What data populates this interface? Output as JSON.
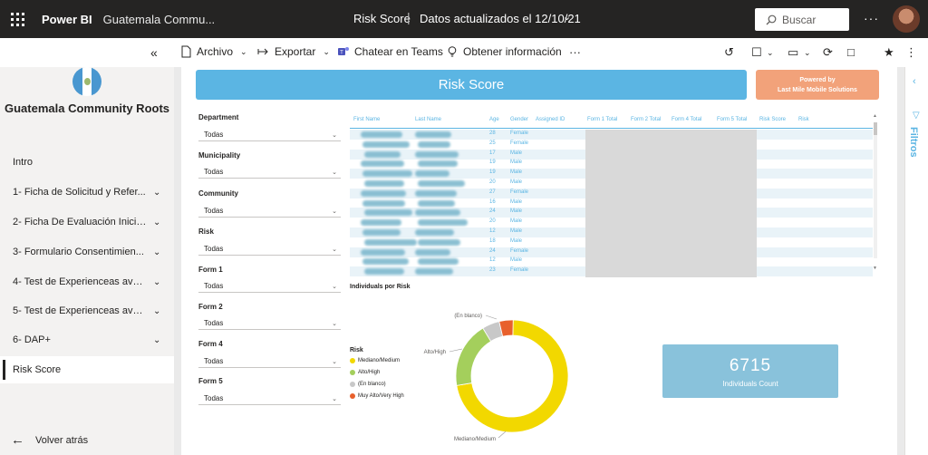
{
  "topbar": {
    "brand": "Power BI",
    "workspace": "Guatemala Commu...",
    "report_title": "Risk Score",
    "separator": "|",
    "updated": "Datos actualizados el 12/10/21",
    "search_placeholder": "Buscar",
    "more": "···"
  },
  "toolbar": {
    "archivo": "Archivo",
    "exportar": "Exportar",
    "teams": "Chatear en Teams",
    "info": "Obtener información",
    "more": "···"
  },
  "nav": {
    "org_name": "Guatemala Community Roots",
    "items": [
      {
        "label": "Intro",
        "chevron": false
      },
      {
        "label": "1- Ficha de Solicitud y Refer...",
        "chevron": true
      },
      {
        "label": "2- Ficha De Evaluación Inicia...",
        "chevron": true
      },
      {
        "label": "3- Formulario Consentimien...",
        "chevron": true
      },
      {
        "label": "4- Test de Experienceas aver...",
        "chevron": true
      },
      {
        "label": "5- Test de Experienceas aver...",
        "chevron": true
      },
      {
        "label": "6- DAP+",
        "chevron": true
      },
      {
        "label": "Risk Score",
        "chevron": false,
        "active": true
      }
    ],
    "back": "Volver atrás"
  },
  "report": {
    "title": "Risk Score",
    "powered_line1": "Powered by",
    "powered_line2": "Last Mile Mobile Solutions"
  },
  "slicers": [
    {
      "label": "Department",
      "value": "Todas"
    },
    {
      "label": "Municipality",
      "value": "Todas"
    },
    {
      "label": "Community",
      "value": "Todas"
    },
    {
      "label": "Risk",
      "value": "Todas"
    },
    {
      "label": "Form 1",
      "value": "Todas"
    },
    {
      "label": "Form 2",
      "value": "Todas"
    },
    {
      "label": "Form 4",
      "value": "Todas"
    },
    {
      "label": "Form 5",
      "value": "Todas"
    }
  ],
  "table": {
    "headers": [
      "First Name",
      "Last Name",
      "Age",
      "Gender",
      "Assigned ID",
      "Form 1 Total",
      "Form 2 Total",
      "Form 4 Total",
      "Form 5 Total",
      "Risk Score",
      "Risk"
    ],
    "rows": [
      {
        "age": "28",
        "gender": "Female"
      },
      {
        "age": "25",
        "gender": "Female"
      },
      {
        "age": "17",
        "gender": "Male"
      },
      {
        "age": "19",
        "gender": "Male"
      },
      {
        "age": "19",
        "gender": "Male"
      },
      {
        "age": "20",
        "gender": "Male"
      },
      {
        "age": "27",
        "gender": "Female"
      },
      {
        "age": "16",
        "gender": "Male"
      },
      {
        "age": "24",
        "gender": "Male"
      },
      {
        "age": "20",
        "gender": "Male"
      },
      {
        "age": "12",
        "gender": "Male"
      },
      {
        "age": "18",
        "gender": "Male"
      },
      {
        "age": "24",
        "gender": "Female"
      },
      {
        "age": "12",
        "gender": "Male"
      },
      {
        "age": "23",
        "gender": "Female"
      }
    ]
  },
  "donut": {
    "title": "Individuals por Risk",
    "legend_title": "Risk",
    "slices": [
      {
        "label": "Mediano/Medium",
        "fraction": 0.72,
        "color": "#f2d800"
      },
      {
        "label": "Alto/High",
        "fraction": 0.19,
        "color": "#a4cf5c"
      },
      {
        "label": "(En blanco)",
        "fraction": 0.05,
        "color": "#c8c8c8"
      },
      {
        "label": "Muy Alto/Very High",
        "fraction": 0.04,
        "color": "#e8602c"
      }
    ],
    "callout_blank": "(En blanco)",
    "callout_high": "Alto/High",
    "callout_medium": "Mediano/Medium"
  },
  "card": {
    "value": "6715",
    "caption": "Individuals Count"
  },
  "filters": {
    "label": "Filtros"
  }
}
